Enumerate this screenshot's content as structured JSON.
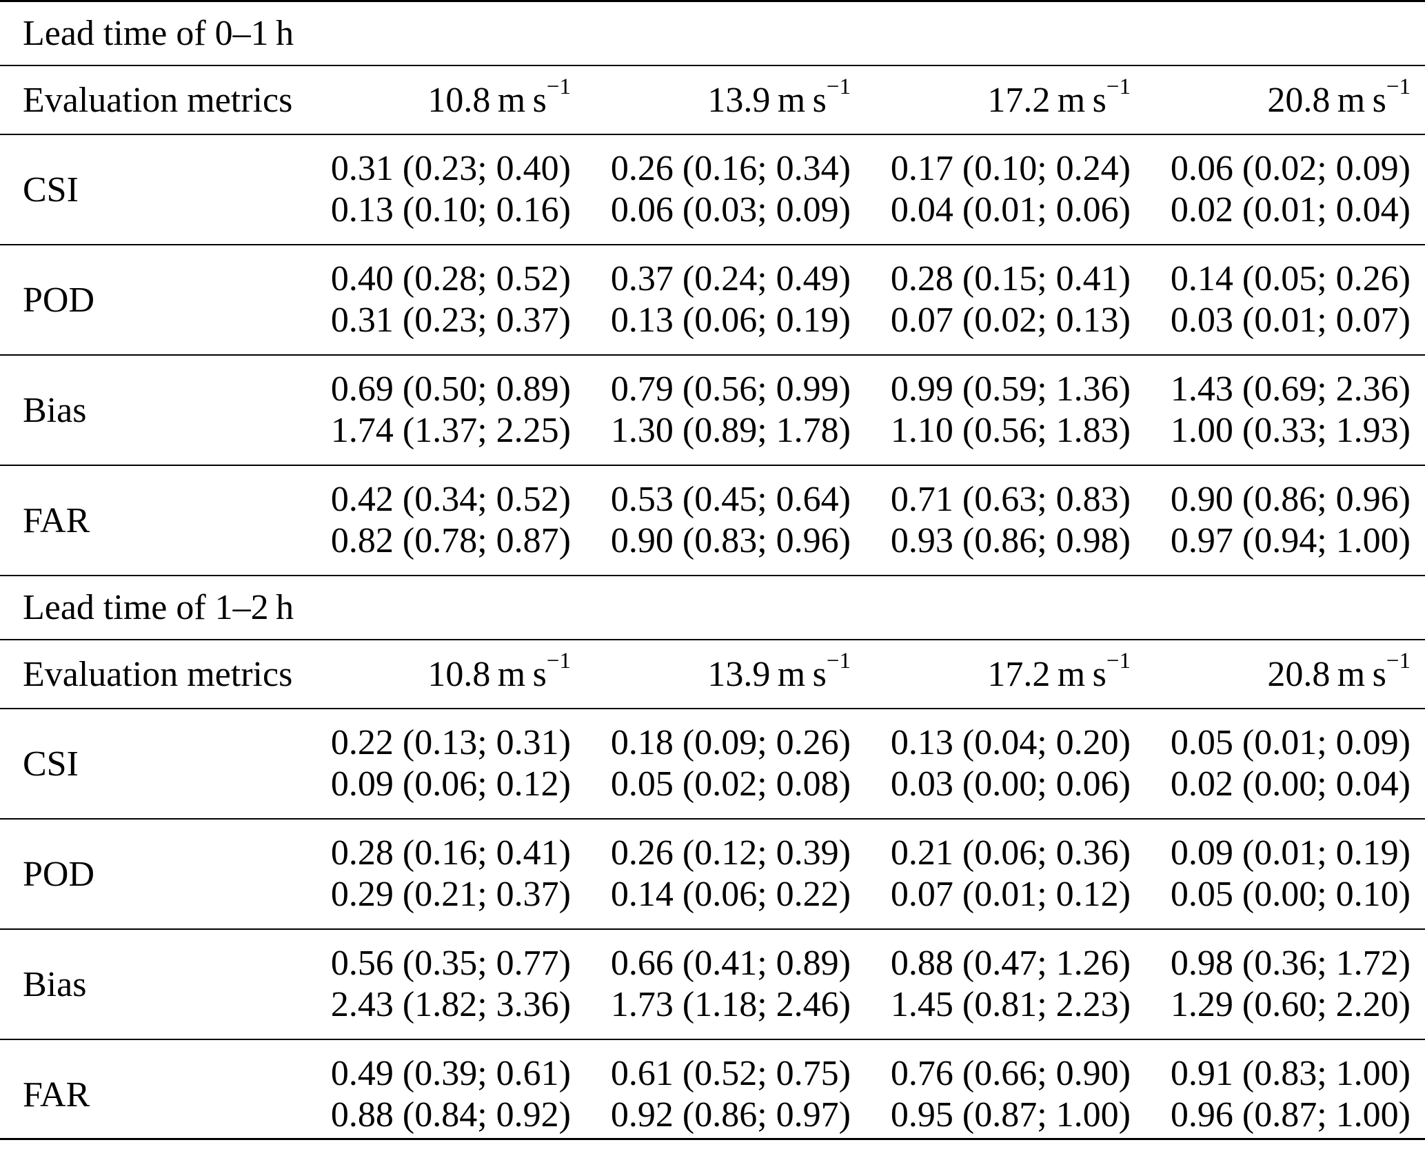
{
  "table": {
    "sections": [
      {
        "title": "Lead time of 0–1 h",
        "header": {
          "metric_label": "Evaluation metrics",
          "columns": [
            {
              "label": "10.8 m s",
              "sup": "−1"
            },
            {
              "label": "13.9 m s",
              "sup": "−1"
            },
            {
              "label": "17.2 m s",
              "sup": "−1"
            },
            {
              "label": "20.8 m s",
              "sup": "−1"
            }
          ]
        },
        "rows": [
          {
            "metric": "CSI",
            "cells": [
              {
                "line1": "0.31 (0.23; 0.40)",
                "line2": "0.13 (0.10; 0.16)"
              },
              {
                "line1": "0.26 (0.16; 0.34)",
                "line2": "0.06 (0.03; 0.09)"
              },
              {
                "line1": "0.17 (0.10; 0.24)",
                "line2": "0.04 (0.01; 0.06)"
              },
              {
                "line1": "0.06 (0.02; 0.09)",
                "line2": "0.02 (0.01; 0.04)"
              }
            ]
          },
          {
            "metric": "POD",
            "cells": [
              {
                "line1": "0.40 (0.28; 0.52)",
                "line2": "0.31 (0.23; 0.37)"
              },
              {
                "line1": "0.37 (0.24; 0.49)",
                "line2": "0.13 (0.06; 0.19)"
              },
              {
                "line1": "0.28 (0.15; 0.41)",
                "line2": "0.07 (0.02; 0.13)"
              },
              {
                "line1": "0.14 (0.05; 0.26)",
                "line2": "0.03 (0.01; 0.07)"
              }
            ]
          },
          {
            "metric": "Bias",
            "cells": [
              {
                "line1": "0.69 (0.50; 0.89)",
                "line2": "1.74 (1.37; 2.25)"
              },
              {
                "line1": "0.79 (0.56; 0.99)",
                "line2": "1.30 (0.89; 1.78)"
              },
              {
                "line1": "0.99 (0.59; 1.36)",
                "line2": "1.10 (0.56; 1.83)"
              },
              {
                "line1": "1.43 (0.69; 2.36)",
                "line2": "1.00 (0.33; 1.93)"
              }
            ]
          },
          {
            "metric": "FAR",
            "cells": [
              {
                "line1": "0.42 (0.34; 0.52)",
                "line2": "0.82 (0.78; 0.87)"
              },
              {
                "line1": "0.53 (0.45; 0.64)",
                "line2": "0.90 (0.83; 0.96)"
              },
              {
                "line1": "0.71 (0.63; 0.83)",
                "line2": "0.93 (0.86; 0.98)"
              },
              {
                "line1": "0.90 (0.86; 0.96)",
                "line2": "0.97 (0.94; 1.00)"
              }
            ]
          }
        ]
      },
      {
        "title": "Lead time of 1–2 h",
        "header": {
          "metric_label": "Evaluation metrics",
          "columns": [
            {
              "label": "10.8 m s",
              "sup": "−1"
            },
            {
              "label": "13.9 m s",
              "sup": "−1"
            },
            {
              "label": "17.2 m s",
              "sup": "−1"
            },
            {
              "label": "20.8 m s",
              "sup": "−1"
            }
          ]
        },
        "rows": [
          {
            "metric": "CSI",
            "cells": [
              {
                "line1": "0.22 (0.13; 0.31)",
                "line2": "0.09 (0.06; 0.12)"
              },
              {
                "line1": "0.18 (0.09; 0.26)",
                "line2": "0.05 (0.02; 0.08)"
              },
              {
                "line1": "0.13 (0.04; 0.20)",
                "line2": "0.03 (0.00; 0.06)"
              },
              {
                "line1": "0.05 (0.01; 0.09)",
                "line2": "0.02 (0.00; 0.04)"
              }
            ]
          },
          {
            "metric": "POD",
            "cells": [
              {
                "line1": "0.28 (0.16; 0.41)",
                "line2": "0.29 (0.21; 0.37)"
              },
              {
                "line1": "0.26 (0.12; 0.39)",
                "line2": "0.14 (0.06; 0.22)"
              },
              {
                "line1": "0.21 (0.06; 0.36)",
                "line2": "0.07 (0.01; 0.12)"
              },
              {
                "line1": "0.09 (0.01; 0.19)",
                "line2": "0.05 (0.00; 0.10)"
              }
            ]
          },
          {
            "metric": "Bias",
            "cells": [
              {
                "line1": "0.56 (0.35; 0.77)",
                "line2": "2.43 (1.82; 3.36)"
              },
              {
                "line1": "0.66 (0.41; 0.89)",
                "line2": "1.73 (1.18; 2.46)"
              },
              {
                "line1": "0.88 (0.47; 1.26)",
                "line2": "1.45 (0.81; 2.23)"
              },
              {
                "line1": "0.98 (0.36; 1.72)",
                "line2": "1.29 (0.60; 2.20)"
              }
            ]
          },
          {
            "metric": "FAR",
            "cells": [
              {
                "line1": "0.49 (0.39; 0.61)",
                "line2": "0.88 (0.84; 0.92)"
              },
              {
                "line1": "0.61 (0.52; 0.75)",
                "line2": "0.92 (0.86; 0.97)"
              },
              {
                "line1": "0.76 (0.66; 0.90)",
                "line2": "0.95 (0.87; 1.00)"
              },
              {
                "line1": "0.91 (0.83; 1.00)",
                "line2": "0.96 (0.87; 1.00)"
              }
            ]
          }
        ]
      }
    ]
  }
}
